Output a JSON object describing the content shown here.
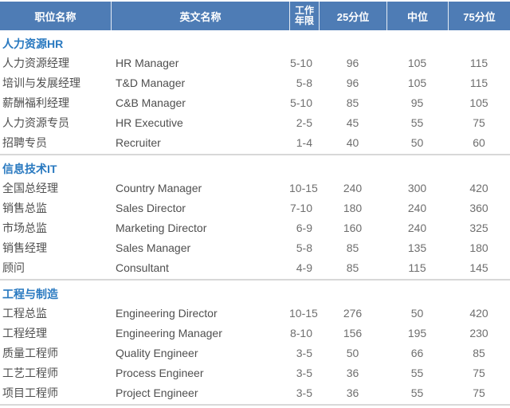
{
  "colors": {
    "header_bg": "#4e7cb5",
    "header_text": "#ffffff",
    "section_title_text": "#2979c0",
    "body_text": "#4f4f4f",
    "numeric_text": "#6e6e6e",
    "divider": "#d8d8d8"
  },
  "table": {
    "header": {
      "col_position": "职位名称",
      "col_english": "英文名称",
      "col_years_line1": "工作",
      "col_years_line2": "年限",
      "col_p25": "25分位",
      "col_median": "中位",
      "col_p75": "75分位"
    },
    "sections": [
      {
        "title": "人力资源HR",
        "rows": [
          {
            "position": "人力资源经理",
            "english": "HR Manager",
            "years": "5-10",
            "p25": "96",
            "median": "105",
            "p75": "115"
          },
          {
            "position": "培训与发展经理",
            "english": "T&D Manager",
            "years": "5-8",
            "p25": "96",
            "median": "105",
            "p75": "115"
          },
          {
            "position": "薪酬福利经理",
            "english": "C&B Manager",
            "years": "5-10",
            "p25": "85",
            "median": "95",
            "p75": "105"
          },
          {
            "position": "人力资源专员",
            "english": "HR Executive",
            "years": "2-5",
            "p25": "45",
            "median": "55",
            "p75": "75"
          },
          {
            "position": "招聘专员",
            "english": "Recruiter",
            "years": "1-4",
            "p25": "40",
            "median": "50",
            "p75": "60"
          }
        ]
      },
      {
        "title": "信息技术IT",
        "rows": [
          {
            "position": "全国总经理",
            "english": "Country Manager",
            "years": "10-15",
            "p25": "240",
            "median": "300",
            "p75": "420"
          },
          {
            "position": "销售总监",
            "english": "Sales Director",
            "years": "7-10",
            "p25": "180",
            "median": "240",
            "p75": "360"
          },
          {
            "position": "市场总监",
            "english": "Marketing Director",
            "years": "6-9",
            "p25": "160",
            "median": "240",
            "p75": "325"
          },
          {
            "position": "销售经理",
            "english": "Sales Manager",
            "years": "5-8",
            "p25": "85",
            "median": "135",
            "p75": "180"
          },
          {
            "position": "顾问",
            "english": "Consultant",
            "years": "4-9",
            "p25": "85",
            "median": "115",
            "p75": "145"
          }
        ]
      },
      {
        "title": "工程与制造",
        "rows": [
          {
            "position": "工程总监",
            "english": "Engineering Director",
            "years": "10-15",
            "p25": "276",
            "median": "50",
            "p75": "420"
          },
          {
            "position": "工程经理",
            "english": "Engineering Manager",
            "years": "8-10",
            "p25": "156",
            "median": "195",
            "p75": "230"
          },
          {
            "position": "质量工程师",
            "english": "Quality Engineer",
            "years": "3-5",
            "p25": "50",
            "median": "66",
            "p75": "85"
          },
          {
            "position": "工艺工程师",
            "english": "Process Engineer",
            "years": "3-5",
            "p25": "36",
            "median": "55",
            "p75": "75"
          },
          {
            "position": "项目工程师",
            "english": "Project Engineer",
            "years": "3-5",
            "p25": "36",
            "median": "55",
            "p75": "75"
          }
        ]
      }
    ]
  }
}
